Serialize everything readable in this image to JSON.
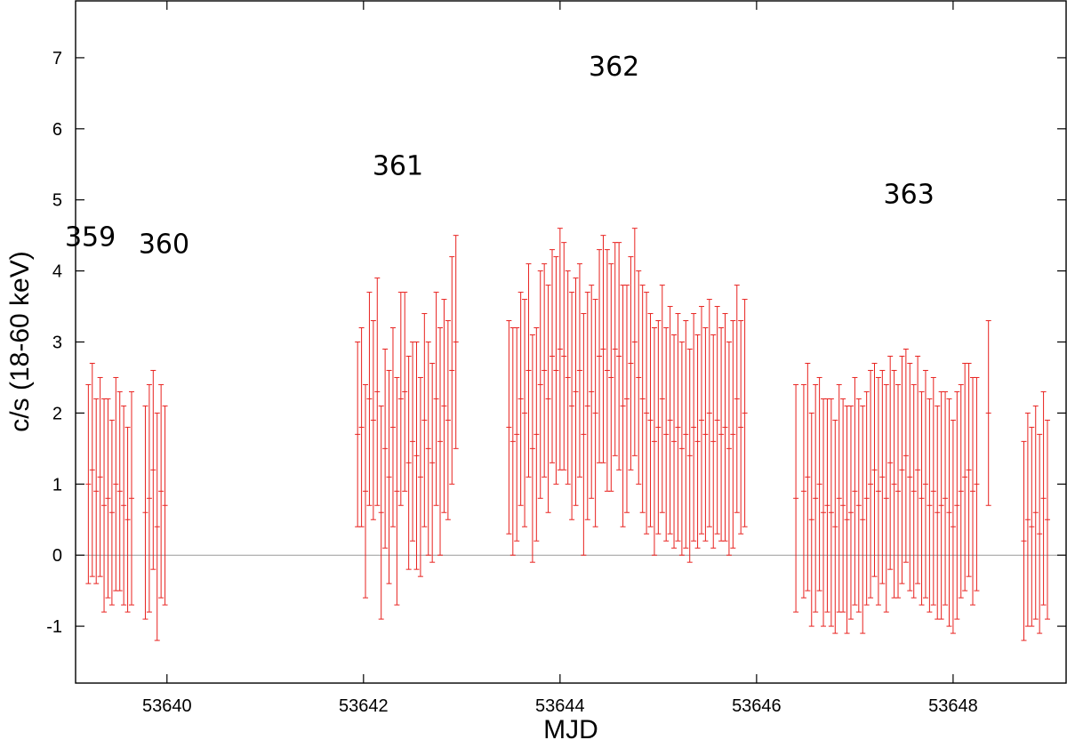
{
  "chart_data": {
    "type": "scatter",
    "style": "error-bars",
    "xlabel": "MJD",
    "ylabel": "c/s (18-60 keV)",
    "xlim": [
      53639.07,
      53649.15
    ],
    "ylim": [
      -1.8,
      7.8
    ],
    "xticks": [
      53640,
      53642,
      53644,
      53646,
      53648
    ],
    "yticks": [
      -1,
      0,
      1,
      2,
      3,
      4,
      5,
      6,
      7
    ],
    "grid": false,
    "zero_line": true,
    "colors": {
      "series": "#e8221f",
      "zero_line": "#9a9a9a",
      "axes": "#000000"
    },
    "annotations": [
      {
        "text": "359",
        "x": 53639.22,
        "y": 4.35
      },
      {
        "text": "360",
        "x": 53639.97,
        "y": 4.25
      },
      {
        "text": "361",
        "x": 53642.35,
        "y": 5.35
      },
      {
        "text": "362",
        "x": 53644.55,
        "y": 6.75
      },
      {
        "text": "363",
        "x": 53647.55,
        "y": 4.95
      }
    ],
    "series": [
      {
        "x": [
          53639.2,
          53639.24,
          53639.28,
          53639.32,
          53639.36,
          53639.4,
          53639.44,
          53639.48,
          53639.52,
          53639.56,
          53639.6,
          53639.64,
          53639.78,
          53639.82,
          53639.86,
          53639.9,
          53639.94,
          53639.98,
          53641.94,
          53641.98,
          53642.02,
          53642.06,
          53642.1,
          53642.14,
          53642.18,
          53642.22,
          53642.26,
          53642.3,
          53642.34,
          53642.38,
          53642.42,
          53642.46,
          53642.5,
          53642.54,
          53642.58,
          53642.62,
          53642.66,
          53642.7,
          53642.74,
          53642.78,
          53642.82,
          53642.86,
          53642.9,
          53642.94,
          53643.48,
          53643.52,
          53643.56,
          53643.6,
          53643.64,
          53643.68,
          53643.72,
          53643.76,
          53643.8,
          53643.84,
          53643.88,
          53643.92,
          53643.96,
          53644.0,
          53644.04,
          53644.08,
          53644.12,
          53644.16,
          53644.2,
          53644.24,
          53644.28,
          53644.32,
          53644.36,
          53644.4,
          53644.44,
          53644.48,
          53644.52,
          53644.56,
          53644.6,
          53644.64,
          53644.68,
          53644.72,
          53644.76,
          53644.8,
          53644.84,
          53644.88,
          53644.92,
          53644.96,
          53645.0,
          53645.04,
          53645.08,
          53645.12,
          53645.16,
          53645.2,
          53645.24,
          53645.28,
          53645.32,
          53645.36,
          53645.4,
          53645.44,
          53645.48,
          53645.52,
          53645.56,
          53645.6,
          53645.64,
          53645.68,
          53645.72,
          53645.76,
          53645.8,
          53645.84,
          53645.88,
          53646.4,
          53646.48,
          53646.52,
          53646.56,
          53646.6,
          53646.64,
          53646.68,
          53646.72,
          53646.76,
          53646.8,
          53646.84,
          53646.88,
          53646.92,
          53646.96,
          53647.0,
          53647.04,
          53647.08,
          53647.12,
          53647.16,
          53647.2,
          53647.24,
          53647.28,
          53647.32,
          53647.36,
          53647.4,
          53647.44,
          53647.48,
          53647.52,
          53647.56,
          53647.6,
          53647.64,
          53647.68,
          53647.72,
          53647.76,
          53647.8,
          53647.84,
          53647.88,
          53647.92,
          53647.96,
          53648.0,
          53648.04,
          53648.08,
          53648.12,
          53648.16,
          53648.2,
          53648.24,
          53648.36,
          53648.72,
          53648.76,
          53648.8,
          53648.84,
          53648.88,
          53648.92,
          53648.96
        ],
        "y": [
          1.0,
          1.2,
          0.9,
          1.1,
          0.7,
          0.8,
          0.6,
          1.0,
          0.9,
          0.7,
          0.5,
          0.8,
          0.6,
          0.8,
          1.2,
          0.4,
          0.9,
          0.7,
          1.7,
          1.8,
          0.9,
          2.2,
          1.9,
          2.3,
          0.6,
          1.5,
          1.1,
          1.8,
          0.9,
          2.2,
          2.3,
          1.3,
          1.6,
          1.4,
          1.1,
          1.9,
          1.5,
          1.3,
          2.2,
          1.6,
          2.1,
          1.9,
          2.6,
          3.0,
          1.8,
          1.6,
          1.7,
          2.2,
          2.0,
          2.6,
          1.5,
          1.7,
          2.4,
          2.6,
          2.2,
          2.8,
          2.6,
          2.9,
          2.8,
          2.5,
          2.1,
          2.3,
          2.6,
          1.7,
          2.1,
          2.3,
          2.0,
          2.8,
          2.9,
          2.6,
          2.5,
          2.9,
          2.8,
          2.1,
          2.2,
          2.7,
          3.0,
          2.5,
          2.2,
          2.0,
          1.9,
          1.6,
          1.8,
          2.2,
          1.7,
          1.9,
          1.6,
          1.8,
          1.5,
          1.7,
          1.4,
          1.8,
          1.6,
          1.9,
          1.7,
          2.0,
          1.6,
          1.9,
          1.7,
          1.8,
          1.5,
          1.7,
          2.2,
          1.8,
          2.0,
          0.8,
          0.9,
          1.1,
          0.5,
          0.8,
          1.0,
          0.6,
          0.7,
          0.6,
          0.4,
          0.8,
          0.7,
          0.5,
          0.6,
          0.9,
          0.7,
          0.5,
          0.8,
          1.0,
          1.2,
          0.9,
          1.1,
          0.8,
          1.3,
          1.0,
          0.9,
          1.2,
          1.4,
          1.1,
          0.9,
          1.2,
          0.8,
          1.0,
          0.7,
          0.9,
          0.6,
          0.7,
          0.8,
          0.6,
          0.4,
          0.7,
          0.9,
          1.1,
          1.2,
          0.9,
          1.0,
          2.0,
          0.2,
          0.5,
          0.4,
          0.6,
          0.3,
          0.8,
          0.5
        ],
        "err": [
          1.4,
          1.5,
          1.3,
          1.4,
          1.5,
          1.4,
          1.3,
          1.5,
          1.4,
          1.4,
          1.3,
          1.5,
          1.5,
          1.6,
          1.4,
          1.6,
          1.5,
          1.4,
          1.3,
          1.4,
          1.5,
          1.5,
          1.4,
          1.6,
          1.5,
          1.4,
          1.5,
          1.4,
          1.6,
          1.5,
          1.4,
          1.5,
          1.4,
          1.6,
          1.4,
          1.5,
          1.5,
          1.4,
          1.5,
          1.6,
          1.5,
          1.4,
          1.6,
          1.5,
          1.5,
          1.6,
          1.5,
          1.5,
          1.6,
          1.5,
          1.6,
          1.5,
          1.6,
          1.5,
          1.6,
          1.5,
          1.6,
          1.7,
          1.6,
          1.5,
          1.6,
          1.6,
          1.5,
          1.7,
          1.6,
          1.5,
          1.6,
          1.5,
          1.6,
          1.7,
          1.6,
          1.5,
          1.6,
          1.7,
          1.6,
          1.5,
          1.6,
          1.5,
          1.6,
          1.7,
          1.5,
          1.6,
          1.5,
          1.6,
          1.5,
          1.6,
          1.5,
          1.6,
          1.5,
          1.6,
          1.5,
          1.6,
          1.5,
          1.6,
          1.5,
          1.6,
          1.5,
          1.6,
          1.5,
          1.6,
          1.5,
          1.6,
          1.6,
          1.5,
          1.6,
          1.6,
          1.5,
          1.6,
          1.5,
          1.6,
          1.5,
          1.6,
          1.5,
          1.6,
          1.5,
          1.6,
          1.5,
          1.6,
          1.5,
          1.6,
          1.5,
          1.6,
          1.5,
          1.6,
          1.5,
          1.6,
          1.5,
          1.6,
          1.5,
          1.6,
          1.5,
          1.6,
          1.5,
          1.6,
          1.5,
          1.6,
          1.5,
          1.6,
          1.5,
          1.6,
          1.5,
          1.6,
          1.5,
          1.6,
          1.5,
          1.6,
          1.5,
          1.6,
          1.5,
          1.6,
          1.5,
          1.3,
          1.4,
          1.5,
          1.4,
          1.5,
          1.4,
          1.5,
          1.4
        ]
      }
    ]
  }
}
